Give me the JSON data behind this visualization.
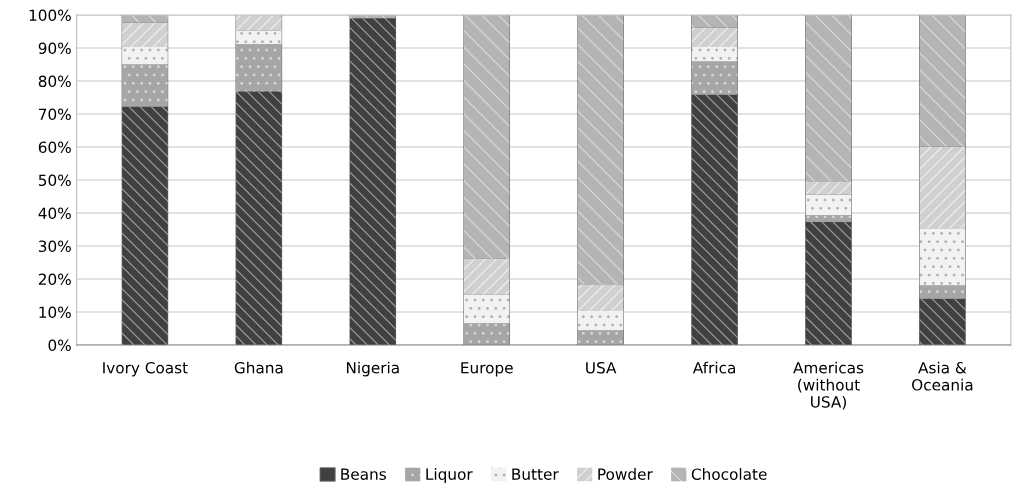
{
  "chart_data": {
    "type": "bar",
    "stacked": true,
    "categories": [
      "Ivory Coast",
      "Ghana",
      "Nigeria",
      "Europe",
      "USA",
      "Africa",
      "Americas\n(without\nUSA)",
      "Asia &\nOceania"
    ],
    "series": [
      {
        "name": "Beans",
        "color": "#404040",
        "values": [
          72.2,
          76.8,
          99,
          0,
          0,
          75.8,
          37.3,
          14
        ]
      },
      {
        "name": "Liquor",
        "color": "#a6a6a6",
        "values": [
          12.8,
          14.4,
          0,
          6.6,
          4.5,
          10.1,
          2.0,
          4
        ]
      },
      {
        "name": "Butter",
        "color": "#f2f2f2",
        "values": [
          5.3,
          4.0,
          0,
          8.6,
          5.8,
          4.4,
          6.3,
          17.4
        ]
      },
      {
        "name": "Powder",
        "color": "#d0d0d0",
        "values": [
          7.4,
          4.8,
          0,
          10.9,
          8.1,
          5.9,
          4.0,
          24.7
        ]
      },
      {
        "name": "Chocolate",
        "color": "#b4b4b4",
        "values": [
          2.3,
          0,
          1,
          73.9,
          81.6,
          3.8,
          50.4,
          39.9
        ]
      }
    ],
    "ylim": [
      0,
      100
    ],
    "yticks": [
      {
        "value": 0,
        "label": "0%"
      },
      {
        "value": 10,
        "label": "10%"
      },
      {
        "value": 20,
        "label": "20%"
      },
      {
        "value": 30,
        "label": "30%"
      },
      {
        "value": 40,
        "label": "40%"
      },
      {
        "value": 50,
        "label": "50%"
      },
      {
        "value": 60,
        "label": "60%"
      },
      {
        "value": 70,
        "label": "70%"
      },
      {
        "value": 80,
        "label": "80%"
      },
      {
        "value": 90,
        "label": "90%"
      },
      {
        "value": 100,
        "label": "100%"
      }
    ],
    "grid": "y",
    "legend": "bottom"
  }
}
